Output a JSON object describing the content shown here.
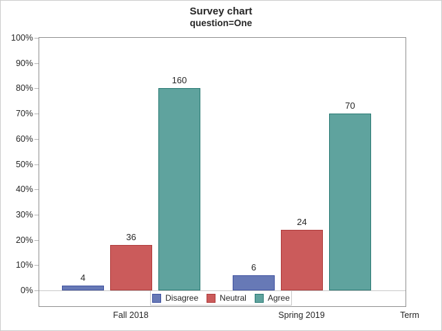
{
  "chart_data": {
    "type": "bar",
    "title": "Survey chart",
    "subtitle": "question=One",
    "xlabel": "Term",
    "ylabel": "",
    "categories": [
      "Fall 2018",
      "Spring 2019"
    ],
    "series": [
      {
        "name": "Disagree",
        "counts": [
          4,
          6
        ],
        "percent_heights": [
          2,
          6
        ],
        "fill": "#6779B6",
        "stroke": "#3F51A0"
      },
      {
        "name": "Neutral",
        "counts": [
          36,
          24
        ],
        "percent_heights": [
          18,
          24
        ],
        "fill": "#CB5B5B",
        "stroke": "#AE3A3A"
      },
      {
        "name": "Agree",
        "counts": [
          160,
          70
        ],
        "percent_heights": [
          80,
          70
        ],
        "fill": "#5FA39E",
        "stroke": "#2A7A74"
      }
    ],
    "bar_labels": "counts",
    "y_axis": {
      "min": 0,
      "max": 100,
      "tick_step": 10,
      "tick_labels": [
        "0%",
        "10%",
        "20%",
        "30%",
        "40%",
        "50%",
        "60%",
        "70%",
        "80%",
        "90%",
        "100%"
      ]
    },
    "grid": false,
    "legend": {
      "position": "bottom",
      "entries": [
        "Disagree",
        "Neutral",
        "Agree"
      ]
    }
  },
  "colors": {
    "background": "#FFFFFF",
    "figure_border": "#CCCCCC",
    "plot_border": "#8F8F8F",
    "baseline": "#C8C8C8",
    "tick": "#B3B3B3",
    "text": "#262626",
    "legend_border": "#C9C9C9"
  }
}
